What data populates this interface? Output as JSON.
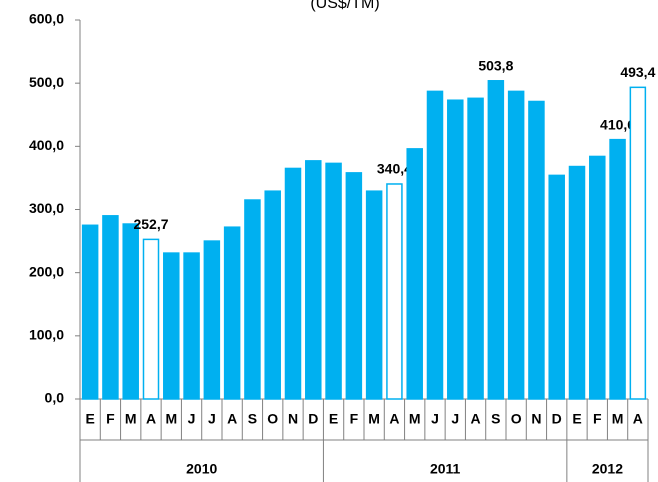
{
  "chart_data": {
    "type": "bar",
    "title": "(US$/TM)",
    "categories": [
      "E",
      "F",
      "M",
      "A",
      "M",
      "J",
      "J",
      "A",
      "S",
      "O",
      "N",
      "D",
      "E",
      "F",
      "M",
      "A",
      "M",
      "J",
      "J",
      "A",
      "S",
      "O",
      "N",
      "D",
      "E",
      "F",
      "M",
      "A"
    ],
    "values": [
      275,
      290,
      277,
      252.7,
      231,
      231,
      250,
      272,
      315,
      329,
      365,
      377,
      373,
      358,
      329,
      340.4,
      396,
      487,
      473,
      476,
      503.8,
      487,
      471,
      354,
      368,
      384,
      410.6,
      493.4
    ],
    "value_labels": [
      null,
      null,
      null,
      "252,7",
      null,
      null,
      null,
      null,
      null,
      null,
      null,
      null,
      null,
      null,
      null,
      "340,4",
      null,
      null,
      null,
      null,
      "503,8",
      null,
      null,
      null,
      null,
      null,
      "410,6",
      "493,4"
    ],
    "colors": [
      "#00b0f0",
      "#00b0f0",
      "#00b0f0",
      "#ffffff",
      "#00b0f0",
      "#00b0f0",
      "#00b0f0",
      "#00b0f0",
      "#00b0f0",
      "#00b0f0",
      "#00b0f0",
      "#00b0f0",
      "#00b0f0",
      "#00b0f0",
      "#00b0f0",
      "#ffffff",
      "#00b0f0",
      "#00b0f0",
      "#00b0f0",
      "#00b0f0",
      "#00b0f0",
      "#00b0f0",
      "#00b0f0",
      "#00b0f0",
      "#00b0f0",
      "#00b0f0",
      "#00b0f0",
      "#ffffff"
    ],
    "edge_color": "#00b0f0",
    "groups": [
      {
        "label": "2010",
        "span": 12
      },
      {
        "label": "2011",
        "span": 12
      },
      {
        "label": "2012",
        "span": 4
      }
    ],
    "ylim": [
      0,
      600
    ],
    "yticks": [
      {
        "value": 0,
        "label": "0,0"
      },
      {
        "value": 100,
        "label": "100,0"
      },
      {
        "value": 200,
        "label": "200,0"
      },
      {
        "value": 300,
        "label": "300,0"
      },
      {
        "value": 400,
        "label": "400,0"
      },
      {
        "value": 500,
        "label": "500,0"
      },
      {
        "value": 600,
        "label": "600,0"
      }
    ],
    "grid": false
  }
}
